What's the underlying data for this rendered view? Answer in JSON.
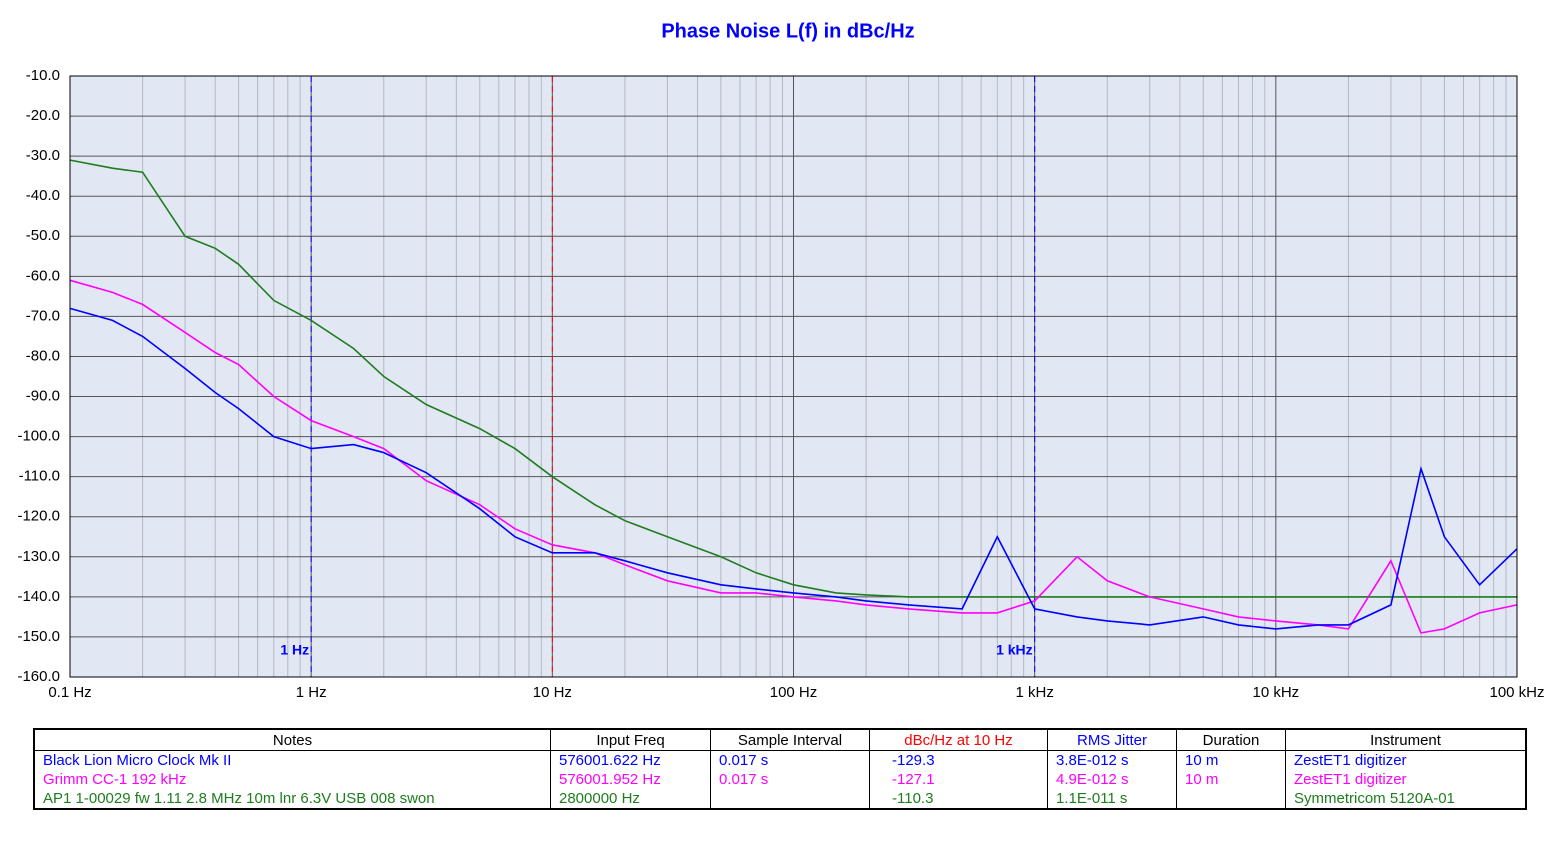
{
  "chart_data": {
    "type": "line",
    "title": "Phase Noise L(f) in dBc/Hz",
    "x_scale": "log",
    "grid": true,
    "minor_grid": true,
    "xlim": [
      0.1,
      100000
    ],
    "xticks": [
      {
        "value": 0.1,
        "label": "0.1 Hz"
      },
      {
        "value": 1,
        "label": "1 Hz"
      },
      {
        "value": 10,
        "label": "10 Hz"
      },
      {
        "value": 100,
        "label": "100 Hz"
      },
      {
        "value": 1000,
        "label": "1 kHz"
      },
      {
        "value": 10000,
        "label": "10 kHz"
      },
      {
        "value": 100000,
        "label": "100 kHz"
      }
    ],
    "ylim": [
      -160,
      -10
    ],
    "yticks": [
      {
        "value": -10,
        "label": "-10.0"
      },
      {
        "value": -20,
        "label": "-20.0"
      },
      {
        "value": -30,
        "label": "-30.0"
      },
      {
        "value": -40,
        "label": "-40.0"
      },
      {
        "value": -50,
        "label": "-50.0"
      },
      {
        "value": -60,
        "label": "-60.0"
      },
      {
        "value": -70,
        "label": "-70.0"
      },
      {
        "value": -80,
        "label": "-80.0"
      },
      {
        "value": -90,
        "label": "-90.0"
      },
      {
        "value": -100,
        "label": "-100.0"
      },
      {
        "value": -110,
        "label": "-110.0"
      },
      {
        "value": -120,
        "label": "-120.0"
      },
      {
        "value": -130,
        "label": "-130.0"
      },
      {
        "value": -140,
        "label": "-140.0"
      },
      {
        "value": -150,
        "label": "-150.0"
      },
      {
        "value": -160,
        "label": "-160.0"
      }
    ],
    "markers": [
      {
        "x": 1,
        "label": "1 Hz",
        "color": "#0000ff"
      },
      {
        "x": 10,
        "color": "#ff0000"
      },
      {
        "x": 1000,
        "label": "1 kHz",
        "color": "#0000ff"
      }
    ],
    "x": [
      0.1,
      0.15,
      0.2,
      0.3,
      0.4,
      0.5,
      0.7,
      1,
      1.5,
      2,
      3,
      5,
      7,
      10,
      15,
      20,
      30,
      50,
      70,
      100,
      150,
      200,
      300,
      500,
      700,
      1000,
      1500,
      2000,
      3000,
      5000,
      7000,
      10000,
      15000,
      20000,
      30000,
      40000,
      50000,
      70000,
      100000
    ],
    "series": [
      {
        "name": "AP1 1-00029 fw 1.11 2.8 MHz 10m lnr 6.3V USB 008 swon",
        "color": "#1e7d1e",
        "values": [
          -31,
          -33,
          -34,
          -50,
          -53,
          -57,
          -66,
          -71,
          -78,
          -85,
          -92,
          -98,
          -103,
          -110,
          -117,
          -121,
          -125,
          -130,
          -134,
          -137,
          -139,
          -139.5,
          -140,
          -140,
          -140,
          -140,
          -140,
          -140,
          -140,
          -140,
          -140,
          -140,
          -140,
          -140,
          -140,
          -140,
          -140,
          -140,
          -140
        ]
      },
      {
        "name": "Grimm CC-1 192 kHz",
        "color": "#ff00ff",
        "values": [
          -61,
          -64,
          -67,
          -74,
          -79,
          -82,
          -90,
          -96,
          -100,
          -103,
          -111,
          -117,
          -123,
          -127,
          -129,
          -132,
          -136,
          -139,
          -139,
          -140,
          -141,
          -142,
          -143,
          -144,
          -144,
          -141,
          -130,
          -136,
          -140,
          -143,
          -145,
          -146,
          -147,
          -148,
          -131,
          -149,
          -148,
          -144,
          -142
        ]
      },
      {
        "name": "Black Lion Micro Clock Mk II",
        "color": "#0000ff",
        "values": [
          -68,
          -71,
          -75,
          -83,
          -89,
          -93,
          -100,
          -103,
          -102,
          -104,
          -109,
          -118,
          -125,
          -129,
          -129,
          -131,
          -134,
          -137,
          -138,
          -139,
          -140,
          -141,
          -142,
          -143,
          -125,
          -143,
          -145,
          -146,
          -147,
          -145,
          -147,
          -148,
          -147,
          -147,
          -142,
          -108,
          -125,
          -137,
          -128
        ]
      }
    ]
  },
  "table": {
    "columns": [
      "Notes",
      "Input Freq",
      "Sample Interval",
      "dBc/Hz at 10 Hz",
      "RMS Jitter",
      "Duration",
      "Instrument"
    ],
    "column_colors": [
      "#000000",
      "#000000",
      "#000000",
      "#ff0000",
      "#0000ff",
      "#000000",
      "#000000"
    ],
    "row_colors": [
      "#0000ff",
      "#ff00ff",
      "#1e7d1e"
    ],
    "rows": [
      [
        "Black Lion Micro Clock Mk II",
        "576001.622 Hz",
        "0.017 s",
        "-129.3",
        "3.8E-012 s",
        "10 m",
        "ZestET1 digitizer"
      ],
      [
        "Grimm CC-1 192 kHz",
        "576001.952 Hz",
        "0.017 s",
        "-127.1",
        "4.9E-012 s",
        "10 m",
        "ZestET1 digitizer"
      ],
      [
        "AP1 1-00029 fw 1.11 2.8 MHz 10m lnr 6.3V USB 008 swon",
        "2800000 Hz",
        null,
        "-110.3",
        "1.1E-011 s",
        null,
        "Symmetricom 5120A-01"
      ]
    ]
  }
}
